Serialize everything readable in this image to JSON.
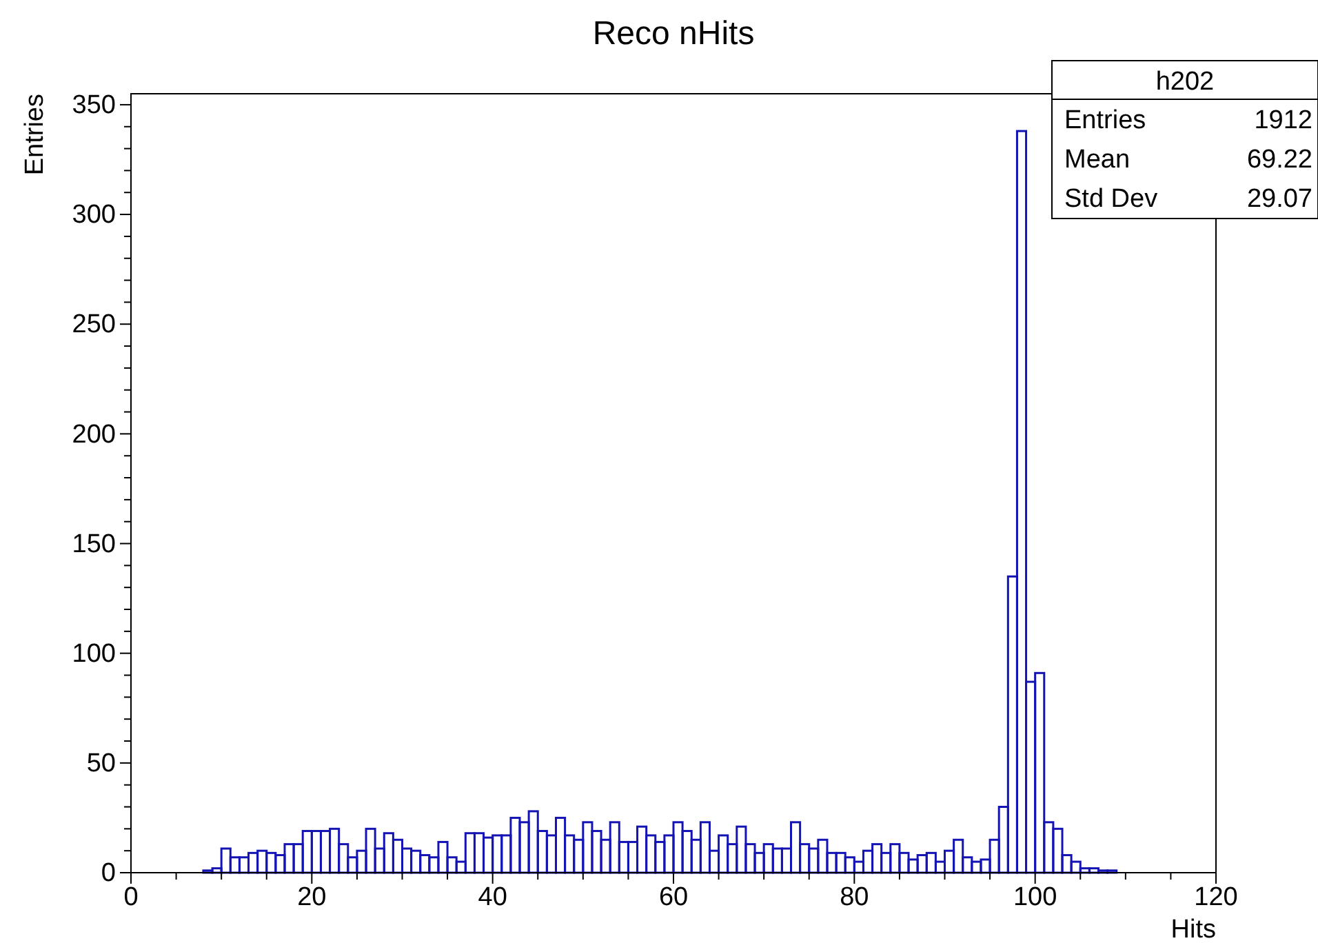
{
  "chart_data": {
    "type": "histogram",
    "title": "Reco nHits",
    "xlabel": "Hits",
    "ylabel": "Entries",
    "annotations": [
      "h202",
      "Entries",
      "1912",
      "Mean",
      "69.22",
      "Std Dev",
      "29.07"
    ],
    "bins": [
      0,
      1,
      2,
      3,
      4,
      5,
      6,
      7,
      8,
      9,
      10,
      11,
      12,
      13,
      14,
      15,
      16,
      17,
      18,
      19,
      20,
      21,
      22,
      23,
      24,
      25,
      26,
      27,
      28,
      29,
      30,
      31,
      32,
      33,
      34,
      35,
      36,
      37,
      38,
      39,
      40,
      41,
      42,
      43,
      44,
      45,
      46,
      47,
      48,
      49,
      50,
      51,
      52,
      53,
      54,
      55,
      56,
      57,
      58,
      59,
      60,
      61,
      62,
      63,
      64,
      65,
      66,
      67,
      68,
      69,
      70,
      71,
      72,
      73,
      74,
      75,
      76,
      77,
      78,
      79,
      80,
      81,
      82,
      83,
      84,
      85,
      86,
      87,
      88,
      89,
      90,
      91,
      92,
      93,
      94,
      95,
      96,
      97,
      98,
      99,
      100,
      101,
      102,
      103,
      104,
      105,
      106,
      107,
      108,
      109,
      110,
      111,
      112,
      113,
      114,
      115,
      116,
      117,
      118,
      119,
      120
    ],
    "values": [
      0,
      0,
      0,
      0,
      0,
      0,
      0,
      0,
      1,
      2,
      11,
      7,
      7,
      9,
      10,
      9,
      8,
      13,
      13,
      19,
      19,
      19,
      20,
      13,
      7,
      10,
      20,
      11,
      18,
      15,
      11,
      10,
      8,
      7,
      14,
      7,
      5,
      18,
      18,
      16,
      17,
      17,
      25,
      23,
      28,
      19,
      17,
      25,
      17,
      15,
      23,
      19,
      15,
      23,
      14,
      14,
      21,
      17,
      14,
      17,
      23,
      19,
      15,
      23,
      10,
      17,
      13,
      21,
      13,
      9,
      13,
      11,
      11,
      23,
      13,
      11,
      15,
      9,
      9,
      7,
      5,
      10,
      13,
      9,
      13,
      9,
      6,
      8,
      9,
      5,
      10,
      15,
      7,
      5,
      6,
      15,
      30,
      135,
      338,
      87,
      91,
      23,
      20,
      8,
      5,
      2,
      2,
      1,
      1,
      0,
      0,
      0,
      0,
      0,
      0,
      0,
      0,
      0,
      0,
      0
    ],
    "color": "#1414b4",
    "xlim": [
      0,
      120
    ],
    "xticks": [
      0,
      {
        "value": 5,
        "label": null
      },
      {
        "value": 10,
        "label": null
      },
      {
        "value": 15,
        "label": null
      },
      20,
      {
        "value": 25,
        "label": null
      },
      {
        "value": 30,
        "label": null
      },
      {
        "value": 35,
        "label": null
      },
      40,
      {
        "value": 45,
        "label": null
      },
      {
        "value": 50,
        "label": null
      },
      {
        "value": 55,
        "label": null
      },
      60,
      {
        "value": 65,
        "label": null
      },
      {
        "value": 70,
        "label": null
      },
      {
        "value": 75,
        "label": null
      },
      80,
      {
        "value": 85,
        "label": null
      },
      {
        "value": 90,
        "label": null
      },
      {
        "value": 95,
        "label": null
      },
      100,
      {
        "value": 105,
        "label": null
      },
      {
        "value": 110,
        "label": null
      },
      {
        "value": 115,
        "label": null
      },
      120
    ],
    "ylim": [
      0,
      355
    ],
    "yticks": [
      0,
      {
        "value": 10,
        "label": null
      },
      {
        "value": 20,
        "label": null
      },
      {
        "value": 30,
        "label": null
      },
      {
        "value": 40,
        "label": null
      },
      50,
      {
        "value": 60,
        "label": null
      },
      {
        "value": 70,
        "label": null
      },
      {
        "value": 80,
        "label": null
      },
      {
        "value": 90,
        "label": null
      },
      100,
      {
        "value": 110,
        "label": null
      },
      {
        "value": 120,
        "label": null
      },
      {
        "value": 130,
        "label": null
      },
      {
        "value": 140,
        "label": null
      },
      150,
      {
        "value": 160,
        "label": null
      },
      {
        "value": 170,
        "label": null
      },
      {
        "value": 180,
        "label": null
      },
      {
        "value": 190,
        "label": null
      },
      200,
      {
        "value": 210,
        "label": null
      },
      {
        "value": 220,
        "label": null
      },
      {
        "value": 230,
        "label": null
      },
      {
        "value": 240,
        "label": null
      },
      250,
      {
        "value": 260,
        "label": null
      },
      {
        "value": 270,
        "label": null
      },
      {
        "value": 280,
        "label": null
      },
      {
        "value": 290,
        "label": null
      },
      300,
      {
        "value": 310,
        "label": null
      },
      {
        "value": 320,
        "label": null
      },
      {
        "value": 330,
        "label": null
      },
      {
        "value": 340,
        "label": null
      },
      350
    ],
    "grid": false
  }
}
